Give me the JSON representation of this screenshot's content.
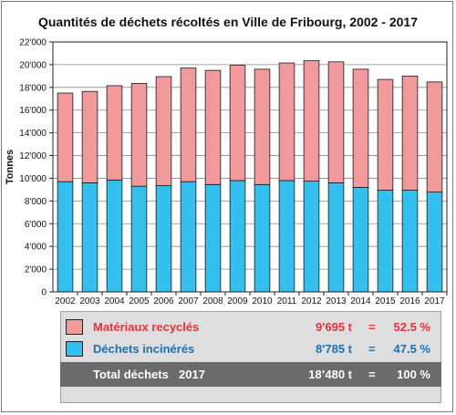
{
  "chart_data": {
    "type": "bar",
    "stacked": true,
    "title": "Quantités de déchets récoltés en Ville de Fribourg, 2002 - 2017",
    "xlabel": "",
    "ylabel": "Tonnes",
    "ylim": [
      0,
      22000
    ],
    "yticks": [
      "0",
      "2'000",
      "4'000",
      "6'000",
      "8'000",
      "10'000",
      "12'000",
      "14'000",
      "16'000",
      "18'000",
      "20'000",
      "22'000"
    ],
    "grid": true,
    "categories": [
      "2002",
      "2003",
      "2004",
      "2005",
      "2006",
      "2007",
      "2008",
      "2009",
      "2010",
      "2011",
      "2012",
      "2013",
      "2014",
      "2015",
      "2016",
      "2017"
    ],
    "series": [
      {
        "name": "Déchets incinérés",
        "color": "#33c0ee",
        "values": [
          9700,
          9600,
          9850,
          9300,
          9350,
          9700,
          9450,
          9800,
          9450,
          9800,
          9750,
          9600,
          9200,
          8950,
          8950,
          8785
        ]
      },
      {
        "name": "Matériaux recyclés",
        "color": "#f2999b",
        "values": [
          7800,
          8050,
          8300,
          9050,
          9600,
          10000,
          10050,
          10150,
          10150,
          10350,
          10600,
          10650,
          10400,
          9750,
          10050,
          9695
        ]
      }
    ]
  },
  "legend": {
    "recycled": {
      "label": "Matériaux recyclés",
      "value": "9'695 t",
      "eq": "=",
      "pct": "52.5 %",
      "color": "#f2999b",
      "text_color": "#e8323c"
    },
    "incinerated": {
      "label": "Déchets incinérés",
      "value": "8'785 t",
      "eq": "=",
      "pct": "47.5 %",
      "color": "#33c0ee",
      "text_color": "#1a72b8"
    },
    "total": {
      "label": "Total déchets",
      "year": "2017",
      "value": "18’480 t",
      "eq": "=",
      "pct": "100 %",
      "bg_color": "#6b6b6b"
    }
  }
}
